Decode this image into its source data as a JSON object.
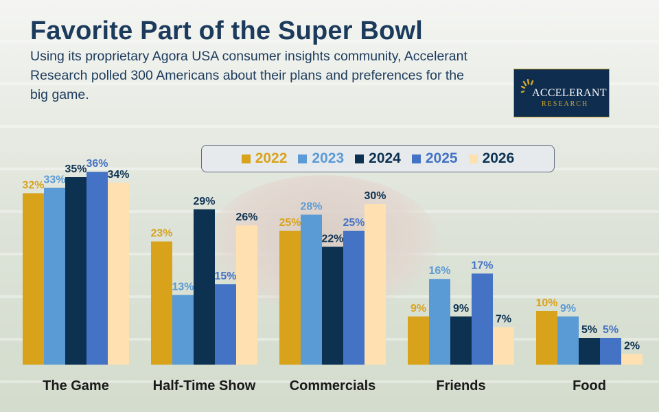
{
  "title": "Favorite Part of the Super Bowl",
  "subtitle": "Using its proprietary Agora USA consumer insights community, Accelerant Research polled 300 Americans about their plans and preferences for the big game.",
  "logo": {
    "name": "ACCELERANT",
    "sub": "RESEARCH",
    "bg_color": "#0f2d4e",
    "accent_color": "#d4a92a"
  },
  "chart_data": {
    "type": "bar",
    "title": "Favorite Part of the Super Bowl",
    "xlabel": "",
    "ylabel": "",
    "ylim": [
      0,
      36
    ],
    "unit": "%",
    "legend_position": "top-center",
    "categories": [
      "The Game",
      "Half-Time Show",
      "Commercials",
      "Friends",
      "Food"
    ],
    "series": [
      {
        "name": "2022",
        "color": "#d9a21b",
        "label_color": "#d9a21b",
        "values": [
          32,
          23,
          25,
          9,
          10
        ]
      },
      {
        "name": "2023",
        "color": "#5b9bd5",
        "label_color": "#5b9bd5",
        "values": [
          33,
          13,
          28,
          16,
          9
        ]
      },
      {
        "name": "2024",
        "color": "#0d3251",
        "label_color": "#0d3251",
        "values": [
          35,
          29,
          22,
          9,
          5
        ]
      },
      {
        "name": "2025",
        "color": "#4472c4",
        "label_color": "#4472c4",
        "values": [
          36,
          15,
          25,
          17,
          5
        ]
      },
      {
        "name": "2026",
        "color": "#ffe0b0",
        "label_color": "#0d3251",
        "values": [
          34,
          26,
          30,
          7,
          2
        ]
      }
    ]
  }
}
